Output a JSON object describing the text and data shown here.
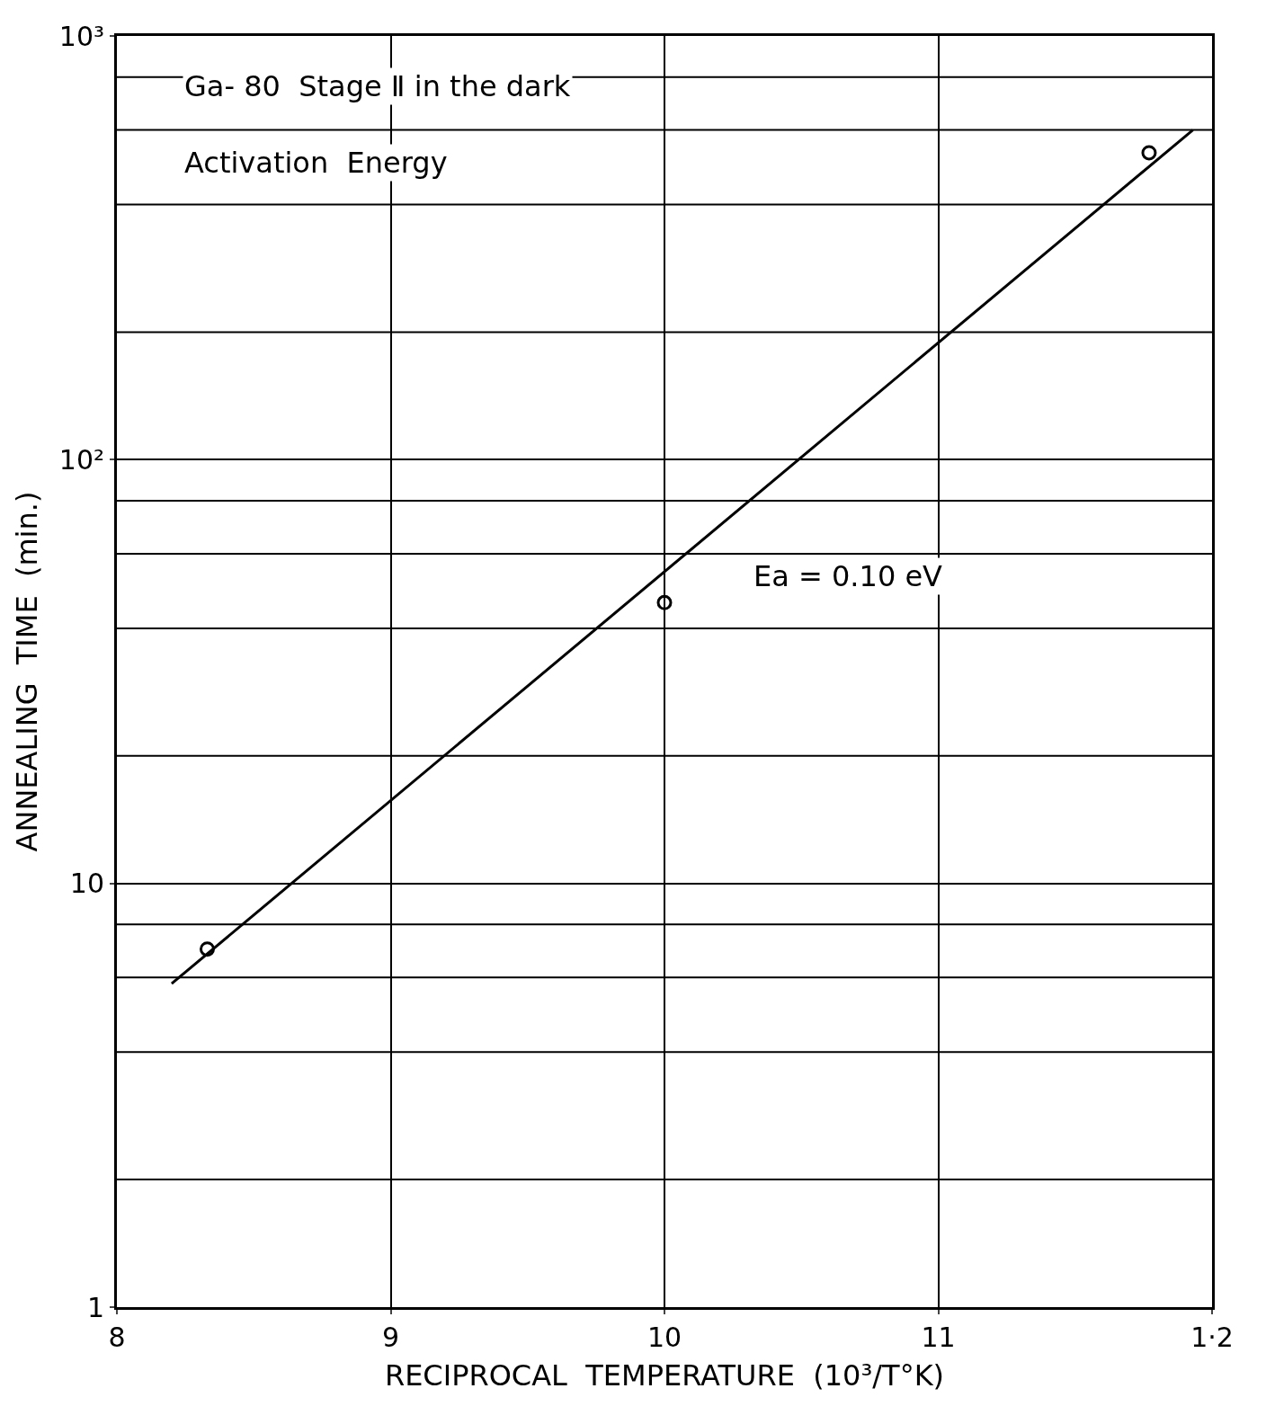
{
  "chart_data": {
    "type": "scatter",
    "xlabel": "RECIPROCAL  TEMPERATURE  (10³/T°K)",
    "ylabel": "ANNEALING  TIME  (min.)",
    "annotations": [
      "Ga- 80  Stage Ⅱ in the dark",
      "Activation  Energy",
      "Ea = 0.10 eV"
    ],
    "series": [
      {
        "x": [
          8.33,
          10.0,
          11.77
        ],
        "values": [
          7.0,
          46,
          530
        ],
        "color": "#000000",
        "marker": "circle"
      },
      {
        "type": "line",
        "x": [
          8.2,
          11.93
        ],
        "values": [
          5.8,
          600
        ],
        "color": "#000000",
        "marker": "none",
        "line_style": "solid"
      }
    ],
    "xlim": [
      8,
      12
    ],
    "xticks": [
      8,
      9,
      10,
      11,
      {
        "value": 12,
        "label": "1·2"
      }
    ],
    "ylim": [
      1,
      1000
    ],
    "yticks": [
      1,
      10,
      {
        "value": 100,
        "label": "10²"
      },
      {
        "value": 1000,
        "label": "10³"
      }
    ],
    "log": "y",
    "grid": true
  }
}
